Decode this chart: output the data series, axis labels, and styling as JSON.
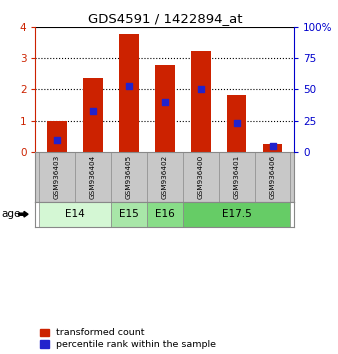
{
  "title": "GDS4591 / 1422894_at",
  "samples": [
    "GSM936403",
    "GSM936404",
    "GSM936405",
    "GSM936402",
    "GSM936400",
    "GSM936401",
    "GSM936406"
  ],
  "transformed_count": [
    1.0,
    2.38,
    3.77,
    2.78,
    3.22,
    1.82,
    0.27
  ],
  "percentile_rank": [
    10,
    33,
    53,
    40,
    50,
    23,
    5
  ],
  "age_groups": [
    {
      "label": "E14",
      "samples": [
        0,
        1
      ],
      "color": "#d4f7d4"
    },
    {
      "label": "E15",
      "samples": [
        2
      ],
      "color": "#a8e6a8"
    },
    {
      "label": "E16",
      "samples": [
        3
      ],
      "color": "#88dd88"
    },
    {
      "label": "E17.5",
      "samples": [
        4,
        5,
        6
      ],
      "color": "#66cc66"
    }
  ],
  "left_ylim": [
    0,
    4
  ],
  "right_ylim": [
    0,
    100
  ],
  "left_yticks": [
    0,
    1,
    2,
    3,
    4
  ],
  "right_yticks": [
    0,
    25,
    50,
    75,
    100
  ],
  "right_yticklabels": [
    "0",
    "25",
    "50",
    "75",
    "100%"
  ],
  "bar_color": "#cc2200",
  "percentile_color": "#2222cc",
  "bar_width": 0.55,
  "background_color": "#ffffff",
  "left_tick_color": "#cc2200",
  "right_tick_color": "#0000cc",
  "sample_bg_color": "#c8c8c8",
  "age_label": "age",
  "gridline_ticks": [
    1,
    2,
    3
  ]
}
